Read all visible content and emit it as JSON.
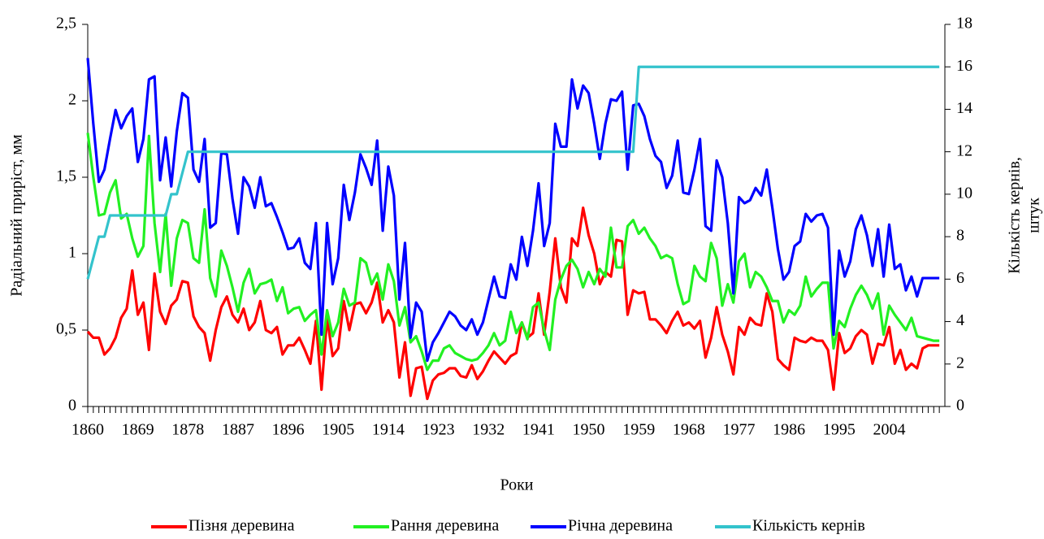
{
  "chart_data": {
    "type": "line",
    "xlabel": "Роки",
    "ylabel": "Радіальний приріст, мм",
    "y2label": [
      "Кількість кернів,",
      "штук"
    ],
    "x": [
      1860,
      1861,
      1862,
      1863,
      1864,
      1865,
      1866,
      1867,
      1868,
      1869,
      1870,
      1871,
      1872,
      1873,
      1874,
      1875,
      1876,
      1877,
      1878,
      1879,
      1880,
      1881,
      1882,
      1883,
      1884,
      1885,
      1886,
      1887,
      1888,
      1889,
      1890,
      1891,
      1892,
      1893,
      1894,
      1895,
      1896,
      1897,
      1898,
      1899,
      1900,
      1901,
      1902,
      1903,
      1904,
      1905,
      1906,
      1907,
      1908,
      1909,
      1910,
      1911,
      1912,
      1913,
      1914,
      1915,
      1916,
      1917,
      1918,
      1919,
      1920,
      1921,
      1922,
      1923,
      1924,
      1925,
      1926,
      1927,
      1928,
      1929,
      1930,
      1931,
      1932,
      1933,
      1934,
      1935,
      1936,
      1937,
      1938,
      1939,
      1940,
      1941,
      1942,
      1943,
      1944,
      1945,
      1946,
      1947,
      1948,
      1949,
      1950,
      1951,
      1952,
      1953,
      1954,
      1955,
      1956,
      1957,
      1958,
      1959,
      1960,
      1961,
      1962,
      1963,
      1964,
      1965,
      1966,
      1967,
      1968,
      1969,
      1970,
      1971,
      1972,
      1973,
      1974,
      1975,
      1976,
      1977,
      1978,
      1979,
      1980,
      1981,
      1982,
      1983,
      1984,
      1985,
      1986,
      1987,
      1988,
      1989,
      1990,
      1991,
      1992,
      1993,
      1994,
      1995,
      1996,
      1997,
      1998,
      1999,
      2000,
      2001,
      2002,
      2003,
      2004,
      2005,
      2006,
      2007,
      2008,
      2009,
      2010,
      2011,
      2012,
      2013
    ],
    "xlim": [
      1860,
      2014
    ],
    "xticks": [
      1860,
      1869,
      1878,
      1887,
      1896,
      1905,
      1914,
      1923,
      1932,
      1941,
      1950,
      1959,
      1968,
      1977,
      1986,
      1995,
      2004
    ],
    "ylim": [
      0,
      2.5
    ],
    "yticks": [
      0,
      {
        "value": 0.5,
        "label": "0,5"
      },
      1,
      {
        "value": 1.5,
        "label": "1,5"
      },
      2,
      {
        "value": 2.5,
        "label": "2,5"
      }
    ],
    "y2lim": [
      0,
      18
    ],
    "y2ticks": [
      0,
      2,
      4,
      6,
      8,
      10,
      12,
      14,
      16,
      18
    ],
    "series": [
      {
        "name": "Пізня деревина",
        "color": "#ff0000",
        "values": [
          0.49,
          0.45,
          0.45,
          0.34,
          0.38,
          0.45,
          0.58,
          0.64,
          0.89,
          0.6,
          0.68,
          0.37,
          0.87,
          0.62,
          0.54,
          0.66,
          0.7,
          0.82,
          0.81,
          0.59,
          0.52,
          0.48,
          0.3,
          0.5,
          0.65,
          0.72,
          0.6,
          0.55,
          0.64,
          0.5,
          0.55,
          0.69,
          0.5,
          0.48,
          0.52,
          0.34,
          0.4,
          0.4,
          0.45,
          0.37,
          0.28,
          0.56,
          0.11,
          0.58,
          0.33,
          0.38,
          0.69,
          0.5,
          0.67,
          0.68,
          0.61,
          0.68,
          0.81,
          0.55,
          0.63,
          0.55,
          0.19,
          0.42,
          0.07,
          0.25,
          0.26,
          0.05,
          0.17,
          0.21,
          0.22,
          0.25,
          0.25,
          0.2,
          0.19,
          0.27,
          0.18,
          0.23,
          0.3,
          0.36,
          0.32,
          0.28,
          0.33,
          0.35,
          0.55,
          0.45,
          0.48,
          0.74,
          0.47,
          0.75,
          1.1,
          0.78,
          0.68,
          1.1,
          1.05,
          1.3,
          1.12,
          1.0,
          0.8,
          0.88,
          0.85,
          1.09,
          1.08,
          0.6,
          0.76,
          0.74,
          0.75,
          0.57,
          0.57,
          0.53,
          0.48,
          0.56,
          0.62,
          0.53,
          0.55,
          0.51,
          0.56,
          0.32,
          0.45,
          0.65,
          0.47,
          0.36,
          0.21,
          0.52,
          0.47,
          0.58,
          0.54,
          0.53,
          0.74,
          0.62,
          0.31,
          0.27,
          0.24,
          0.45,
          0.43,
          0.42,
          0.45,
          0.43,
          0.43,
          0.37,
          0.11,
          0.48,
          0.35,
          0.38,
          0.46,
          0.5,
          0.47,
          0.28,
          0.41,
          0.4,
          0.52,
          0.28,
          0.37,
          0.24,
          0.28,
          0.25,
          0.38,
          0.4,
          0.4,
          0.4
        ]
      },
      {
        "name": "Рання деревина",
        "color": "#22f022",
        "values": [
          1.79,
          1.5,
          1.25,
          1.26,
          1.4,
          1.48,
          1.23,
          1.26,
          1.1,
          0.98,
          1.05,
          1.77,
          1.2,
          0.88,
          1.26,
          0.79,
          1.1,
          1.22,
          1.2,
          0.97,
          0.94,
          1.29,
          0.84,
          0.72,
          1.02,
          0.92,
          0.78,
          0.62,
          0.81,
          0.9,
          0.74,
          0.8,
          0.81,
          0.83,
          0.69,
          0.78,
          0.61,
          0.64,
          0.65,
          0.56,
          0.6,
          0.63,
          0.34,
          0.63,
          0.46,
          0.55,
          0.77,
          0.66,
          0.68,
          0.97,
          0.94,
          0.8,
          0.87,
          0.7,
          0.93,
          0.82,
          0.53,
          0.65,
          0.42,
          0.46,
          0.36,
          0.24,
          0.3,
          0.3,
          0.38,
          0.4,
          0.35,
          0.33,
          0.31,
          0.3,
          0.31,
          0.35,
          0.4,
          0.48,
          0.4,
          0.43,
          0.62,
          0.48,
          0.55,
          0.44,
          0.65,
          0.68,
          0.5,
          0.37,
          0.7,
          0.83,
          0.92,
          0.96,
          0.9,
          0.78,
          0.88,
          0.8,
          0.9,
          0.85,
          1.17,
          0.91,
          0.91,
          1.18,
          1.22,
          1.13,
          1.17,
          1.1,
          1.05,
          0.97,
          0.99,
          0.97,
          0.8,
          0.67,
          0.69,
          0.92,
          0.85,
          0.82,
          1.07,
          0.97,
          0.66,
          0.8,
          0.68,
          0.95,
          1.0,
          0.78,
          0.88,
          0.85,
          0.78,
          0.69,
          0.69,
          0.55,
          0.63,
          0.6,
          0.66,
          0.85,
          0.72,
          0.77,
          0.81,
          0.81,
          0.38,
          0.56,
          0.52,
          0.64,
          0.73,
          0.79,
          0.73,
          0.64,
          0.74,
          0.47,
          0.66,
          0.6,
          0.55,
          0.5,
          0.58,
          0.46,
          0.45,
          0.44,
          0.43,
          0.43
        ]
      },
      {
        "name": "Річна деревина",
        "color": "#0000ff",
        "values": [
          2.28,
          1.85,
          1.47,
          1.55,
          1.75,
          1.94,
          1.82,
          1.9,
          1.95,
          1.6,
          1.75,
          2.14,
          2.16,
          1.48,
          1.76,
          1.44,
          1.8,
          2.05,
          2.02,
          1.55,
          1.47,
          1.75,
          1.17,
          1.2,
          1.66,
          1.65,
          1.36,
          1.13,
          1.5,
          1.44,
          1.3,
          1.5,
          1.31,
          1.33,
          1.24,
          1.14,
          1.03,
          1.04,
          1.1,
          0.94,
          0.9,
          1.2,
          0.47,
          1.2,
          0.8,
          0.97,
          1.45,
          1.22,
          1.4,
          1.65,
          1.56,
          1.45,
          1.74,
          1.15,
          1.57,
          1.38,
          0.7,
          1.07,
          0.45,
          0.68,
          0.62,
          0.3,
          0.42,
          0.48,
          0.55,
          0.62,
          0.59,
          0.53,
          0.5,
          0.57,
          0.47,
          0.55,
          0.7,
          0.85,
          0.72,
          0.71,
          0.93,
          0.83,
          1.11,
          0.92,
          1.15,
          1.46,
          1.05,
          1.2,
          1.85,
          1.7,
          1.7,
          2.14,
          1.95,
          2.1,
          2.05,
          1.85,
          1.62,
          1.85,
          2.01,
          2.0,
          2.06,
          1.55,
          1.97,
          1.98,
          1.9,
          1.75,
          1.64,
          1.6,
          1.43,
          1.51,
          1.74,
          1.4,
          1.39,
          1.55,
          1.75,
          1.18,
          1.15,
          1.61,
          1.5,
          1.2,
          0.74,
          1.37,
          1.33,
          1.35,
          1.43,
          1.38,
          1.55,
          1.3,
          1.03,
          0.83,
          0.88,
          1.05,
          1.08,
          1.26,
          1.21,
          1.25,
          1.26,
          1.17,
          0.47,
          1.02,
          0.85,
          0.95,
          1.16,
          1.25,
          1.12,
          0.92,
          1.16,
          0.85,
          1.19,
          0.9,
          0.93,
          0.76,
          0.85,
          0.72,
          0.84,
          0.84,
          0.84,
          0.84
        ]
      },
      {
        "name": "Кількість кернів",
        "color": "#33c3cc",
        "axis": "y2",
        "values": [
          6,
          7,
          8,
          8,
          9,
          9,
          9,
          9,
          9,
          9,
          9,
          9,
          9,
          9,
          9,
          10,
          10,
          11,
          12,
          12,
          12,
          12,
          12,
          12,
          12,
          12,
          12,
          12,
          12,
          12,
          12,
          12,
          12,
          12,
          12,
          12,
          12,
          12,
          12,
          12,
          12,
          12,
          12,
          12,
          12,
          12,
          12,
          12,
          12,
          12,
          12,
          12,
          12,
          12,
          12,
          12,
          12,
          12,
          12,
          12,
          12,
          12,
          12,
          12,
          12,
          12,
          12,
          12,
          12,
          12,
          12,
          12,
          12,
          12,
          12,
          12,
          12,
          12,
          12,
          12,
          12,
          12,
          12,
          12,
          12,
          12,
          12,
          12,
          12,
          12,
          12,
          12,
          12,
          12,
          12,
          12,
          12,
          12,
          12,
          16,
          16,
          16,
          16,
          16,
          16,
          16,
          16,
          16,
          16,
          16,
          16,
          16,
          16,
          16,
          16,
          16,
          16,
          16,
          16,
          16,
          16,
          16,
          16,
          16,
          16,
          16,
          16,
          16,
          16,
          16,
          16,
          16,
          16,
          16,
          16,
          16,
          16,
          16,
          16,
          16,
          16,
          16,
          16,
          16,
          16,
          16,
          16,
          16,
          16,
          16,
          16,
          16,
          16,
          16
        ]
      }
    ]
  }
}
